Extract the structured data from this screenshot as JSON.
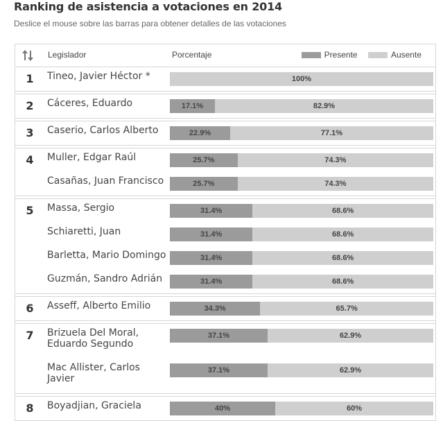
{
  "title": "Ranking de asistencia a votaciones en 2014",
  "subtitle": "Deslice el mouse sobre las barras para obtener detalles de las votaciones",
  "header": {
    "legislador": "Legislador",
    "porcentaje": "Porcentaje",
    "legend_present": "Presente",
    "legend_absent": "Ausente",
    "present_color": "#9b9b9b",
    "absent_color": "#cfcfcf",
    "sort_icon": "sort-arrows-icon"
  },
  "groups": [
    {
      "rank": "1",
      "rows": [
        {
          "name": "Tineo, Javier Héctor *",
          "present": 0,
          "present_label": "",
          "absent_label": "100%"
        }
      ]
    },
    {
      "rank": "2",
      "rows": [
        {
          "name": "Cáceres, Eduardo",
          "present": 17.1,
          "present_label": "17.1%",
          "absent_label": "82.9%"
        }
      ]
    },
    {
      "rank": "3",
      "rows": [
        {
          "name": "Caserio, Carlos Alberto",
          "present": 22.9,
          "present_label": "22.9%",
          "absent_label": "77.1%"
        }
      ]
    },
    {
      "rank": "4",
      "rows": [
        {
          "name": "Muller, Edgar Raúl",
          "present": 25.7,
          "present_label": "25.7%",
          "absent_label": "74.3%"
        },
        {
          "name": "Casañas, Juan Francisco",
          "present": 25.7,
          "present_label": "25.7%",
          "absent_label": "74.3%"
        }
      ]
    },
    {
      "rank": "5",
      "rows": [
        {
          "name": "Massa, Sergio",
          "present": 31.4,
          "present_label": "31.4%",
          "absent_label": "68.6%"
        },
        {
          "name": "Schiaretti, Juan",
          "present": 31.4,
          "present_label": "31.4%",
          "absent_label": "68.6%"
        },
        {
          "name": "Barletta, Mario Domingo",
          "present": 31.4,
          "present_label": "31.4%",
          "absent_label": "68.6%"
        },
        {
          "name": "Guzmán, Sandro Adrián",
          "present": 31.4,
          "present_label": "31.4%",
          "absent_label": "68.6%"
        }
      ]
    },
    {
      "rank": "6",
      "rows": [
        {
          "name": "Asseff, Alberto Emilio",
          "present": 34.3,
          "present_label": "34.3%",
          "absent_label": "65.7%"
        }
      ]
    },
    {
      "rank": "7",
      "rows": [
        {
          "name": "Brizuela Del Moral, Eduardo Segundo",
          "present": 37.1,
          "present_label": "37.1%",
          "absent_label": "62.9%"
        },
        {
          "name": "Mac Allister, Carlos Javier",
          "present": 37.1,
          "present_label": "37.1%",
          "absent_label": "62.9%"
        }
      ]
    },
    {
      "rank": "8",
      "rows": [
        {
          "name": "Boyadjian, Graciela",
          "present": 40,
          "present_label": "40%",
          "absent_label": "60%"
        }
      ]
    }
  ]
}
